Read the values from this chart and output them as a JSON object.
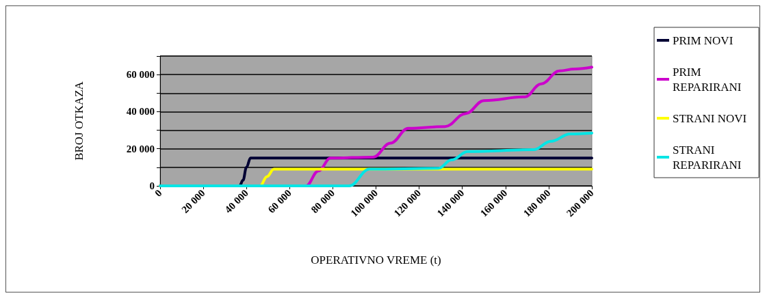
{
  "chart_data": {
    "type": "line",
    "xlabel": "OPERATIVNO VREME (t)",
    "ylabel": "BROJ OTKAZA",
    "xlim": [
      0,
      200000
    ],
    "xticks": [
      0,
      {
        "value": 20000,
        "label": "20 000"
      },
      {
        "value": 40000,
        "label": "40 000"
      },
      {
        "value": 60000,
        "label": "60 000"
      },
      {
        "value": 80000,
        "label": "80 000"
      },
      {
        "value": 100000,
        "label": "100 000"
      },
      {
        "value": 120000,
        "label": "120 000"
      },
      {
        "value": 140000,
        "label": "140 000"
      },
      {
        "value": 160000,
        "label": "160 000"
      },
      {
        "value": 180000,
        "label": "180 000"
      },
      {
        "value": 200000,
        "label": "200 000"
      }
    ],
    "ylim": [
      0,
      70000
    ],
    "yticks": [
      0,
      {
        "value": 10000,
        "label": null
      },
      {
        "value": 20000,
        "label": "20 000"
      },
      {
        "value": 30000,
        "label": null
      },
      {
        "value": 40000,
        "label": "40 000"
      },
      {
        "value": 50000,
        "label": null
      },
      {
        "value": 60000,
        "label": "60 000"
      },
      {
        "value": 70000,
        "label": null
      }
    ],
    "grid": "y",
    "legend": "right",
    "marker": "none",
    "line_style": "solid",
    "series": [
      {
        "name": "PRIM NOVI",
        "color": "#000033",
        "x": [
          0,
          36800,
          38400,
          40000,
          41900,
          200000
        ],
        "values": [
          0,
          0,
          3000,
          10000,
          15000,
          15000
        ]
      },
      {
        "name": "PRIM REPARIRANI",
        "color": "#cc00cc",
        "x": [
          0,
          67600,
          73300,
          79000,
          98700,
          106700,
          115000,
          132000,
          141600,
          150000,
          169000,
          176500,
          185000,
          192000,
          200000
        ],
        "values": [
          0,
          0,
          8000,
          15000,
          15500,
          23000,
          31000,
          32000,
          39000,
          46000,
          48000,
          55000,
          62000,
          63000,
          64000
        ]
      },
      {
        "name": "STRANI NOVI",
        "color": "#ffff00",
        "x": [
          0,
          46300,
          49500,
          52700,
          200000
        ],
        "values": [
          0,
          0,
          5000,
          9000,
          9000
        ]
      },
      {
        "name": "STRANI REPARIRANI",
        "color": "#00e5e5",
        "x": [
          0,
          87600,
          97000,
          129000,
          135000,
          142500,
          173000,
          181000,
          190000,
          200000
        ],
        "values": [
          0,
          0,
          9000,
          9500,
          14000,
          18500,
          19500,
          24000,
          28000,
          28500
        ]
      }
    ]
  }
}
